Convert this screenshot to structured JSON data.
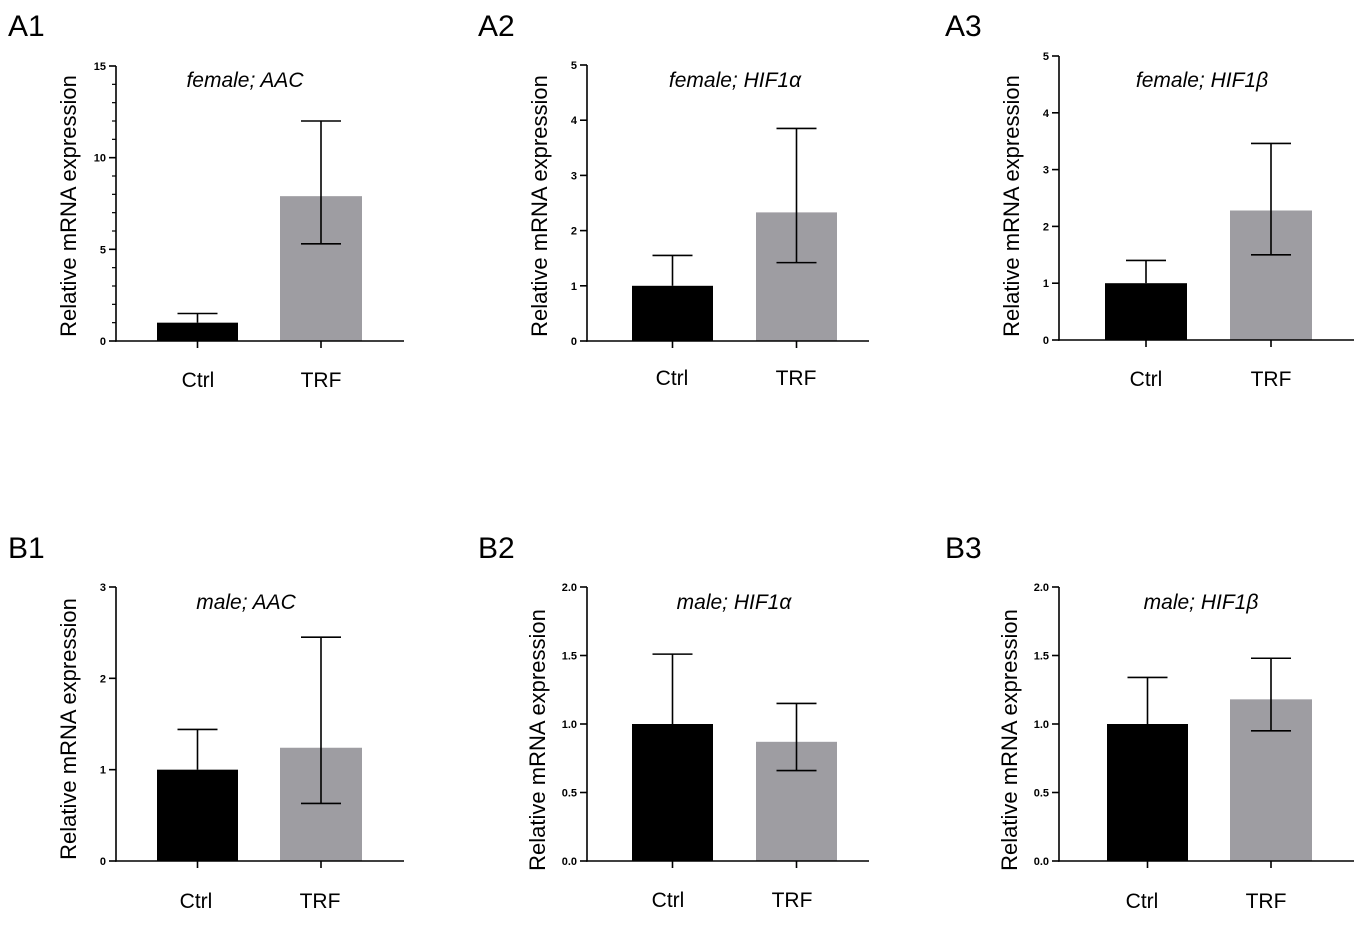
{
  "chart_data": [
    {
      "panel": "A1",
      "type": "bar",
      "title": "female; AAC",
      "ylabel": "Relative mRNA expression",
      "categories": [
        "Ctrl",
        "TRF"
      ],
      "values": [
        1.0,
        7.9
      ],
      "error_upper": [
        1.5,
        12.0
      ],
      "error_lower": [
        1.0,
        5.3
      ],
      "colors": [
        "#000000",
        "#9e9da2"
      ],
      "ylim": [
        0,
        15
      ],
      "yticks": [
        "0",
        "5",
        "10",
        "15"
      ],
      "ytick_values": [
        0,
        5,
        10,
        15
      ],
      "minor_step": 1
    },
    {
      "panel": "A2",
      "type": "bar",
      "title": "female; HIF1α",
      "ylabel": "Relative mRNA expression",
      "categories": [
        "Ctrl",
        "TRF"
      ],
      "values": [
        1.0,
        2.33
      ],
      "error_upper": [
        1.55,
        3.85
      ],
      "error_lower": [
        1.0,
        1.42
      ],
      "colors": [
        "#000000",
        "#9e9da2"
      ],
      "ylim": [
        0,
        5
      ],
      "yticks": [
        "0",
        "1",
        "2",
        "3",
        "4",
        "5"
      ],
      "ytick_values": [
        0,
        1,
        2,
        3,
        4,
        5
      ],
      "minor_step": 0
    },
    {
      "panel": "A3",
      "type": "bar",
      "title": "female; HIF1β",
      "ylabel": "Relative mRNA expression",
      "categories": [
        "Ctrl",
        "TRF"
      ],
      "values": [
        1.0,
        2.28
      ],
      "error_upper": [
        1.4,
        3.46
      ],
      "error_lower": [
        1.0,
        1.5
      ],
      "colors": [
        "#000000",
        "#9e9da2"
      ],
      "ylim": [
        0,
        5
      ],
      "yticks": [
        "0",
        "1",
        "2",
        "3",
        "4",
        "5"
      ],
      "ytick_values": [
        0,
        1,
        2,
        3,
        4,
        5
      ],
      "minor_step": 0
    },
    {
      "panel": "B1",
      "type": "bar",
      "title": "male; AAC",
      "ylabel": "Relative mRNA expression",
      "categories": [
        "Ctrl",
        "TRF"
      ],
      "values": [
        1.0,
        1.24
      ],
      "error_upper": [
        1.44,
        2.45
      ],
      "error_lower": [
        1.0,
        0.63
      ],
      "colors": [
        "#000000",
        "#9e9da2"
      ],
      "ylim": [
        0,
        3
      ],
      "yticks": [
        "0",
        "1",
        "2",
        "3"
      ],
      "ytick_values": [
        0,
        1,
        2,
        3
      ],
      "minor_step": 0
    },
    {
      "panel": "B2",
      "type": "bar",
      "title": "male; HIF1α",
      "ylabel": "Relative mRNA expression",
      "categories": [
        "Ctrl",
        "TRF"
      ],
      "values": [
        1.0,
        0.87
      ],
      "error_upper": [
        1.51,
        1.15
      ],
      "error_lower": [
        1.0,
        0.66
      ],
      "colors": [
        "#000000",
        "#9e9da2"
      ],
      "ylim": [
        0,
        2
      ],
      "yticks": [
        "0.0",
        "0.5",
        "1.0",
        "1.5",
        "2.0"
      ],
      "ytick_values": [
        0,
        0.5,
        1.0,
        1.5,
        2.0
      ],
      "minor_step": 0
    },
    {
      "panel": "B3",
      "type": "bar",
      "title": "male; HIF1β",
      "ylabel": "Relative mRNA expression",
      "categories": [
        "Ctrl",
        "TRF"
      ],
      "values": [
        1.0,
        1.18
      ],
      "error_upper": [
        1.34,
        1.48
      ],
      "error_lower": [
        1.0,
        0.95
      ],
      "colors": [
        "#000000",
        "#9e9da2"
      ],
      "ylim": [
        0,
        2
      ],
      "yticks": [
        "0.0",
        "0.5",
        "1.0",
        "1.5",
        "2.0"
      ],
      "ytick_values": [
        0,
        0.5,
        1.0,
        1.5,
        2.0
      ],
      "minor_step": 0
    }
  ]
}
